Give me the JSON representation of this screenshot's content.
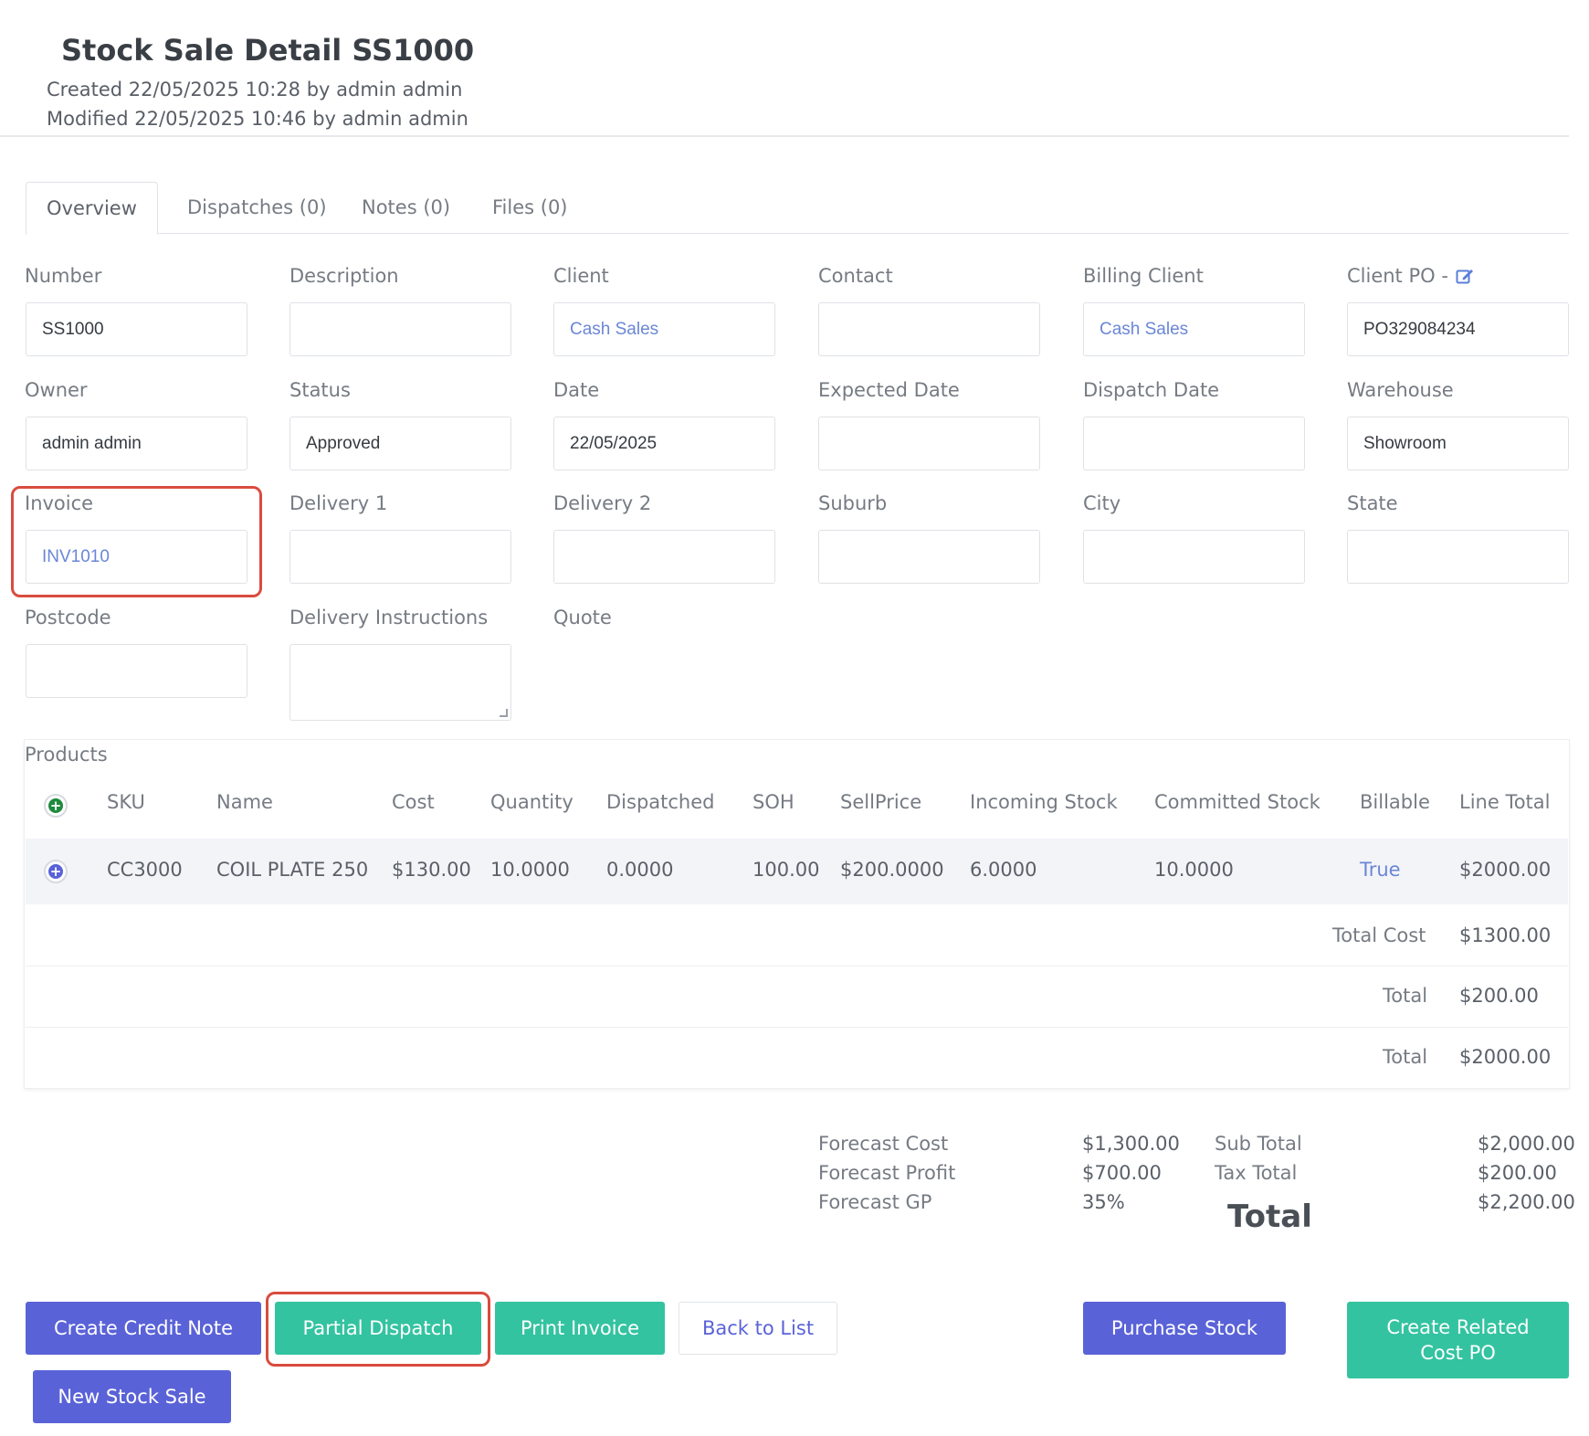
{
  "header": {
    "title": "Stock Sale Detail SS1000",
    "created": "Created 22/05/2025 10:28 by admin admin",
    "modified": "Modified 22/05/2025 10:46 by admin admin"
  },
  "tabs": [
    {
      "label": "Overview",
      "active": true
    },
    {
      "label": "Dispatches (0)",
      "active": false
    },
    {
      "label": "Notes (0)",
      "active": false
    },
    {
      "label": "Files (0)",
      "active": false
    }
  ],
  "fields": {
    "number": {
      "label": "Number",
      "value": "SS1000"
    },
    "description": {
      "label": "Description",
      "value": ""
    },
    "client": {
      "label": "Client",
      "value": "Cash Sales"
    },
    "contact": {
      "label": "Contact",
      "value": ""
    },
    "billing_client": {
      "label": "Billing Client",
      "value": "Cash Sales"
    },
    "client_po": {
      "label": "Client PO -",
      "value": "PO329084234"
    },
    "owner": {
      "label": "Owner",
      "value": "admin admin"
    },
    "status": {
      "label": "Status",
      "value": "Approved"
    },
    "date": {
      "label": "Date",
      "value": "22/05/2025"
    },
    "expected_date": {
      "label": "Expected Date",
      "value": ""
    },
    "dispatch_date": {
      "label": "Dispatch Date",
      "value": ""
    },
    "warehouse": {
      "label": "Warehouse",
      "value": "Showroom"
    },
    "invoice": {
      "label": "Invoice",
      "value": "INV1010"
    },
    "delivery1": {
      "label": "Delivery 1",
      "value": ""
    },
    "delivery2": {
      "label": "Delivery 2",
      "value": ""
    },
    "suburb": {
      "label": "Suburb",
      "value": ""
    },
    "city": {
      "label": "City",
      "value": ""
    },
    "state": {
      "label": "State",
      "value": ""
    },
    "postcode": {
      "label": "Postcode",
      "value": ""
    },
    "delivery_instructions": {
      "label": "Delivery Instructions",
      "value": ""
    },
    "quote": {
      "label": "Quote",
      "value": ""
    }
  },
  "products": {
    "label": "Products",
    "columns": [
      "SKU",
      "Name",
      "Cost",
      "Quantity",
      "Dispatched",
      "SOH",
      "SellPrice",
      "Incoming Stock",
      "Committed Stock",
      "Billable",
      "Line Total"
    ],
    "rows": [
      {
        "sku": "CC3000",
        "name": "COIL PLATE 250",
        "cost": "$130.00",
        "quantity": "10.0000",
        "dispatched": "0.0000",
        "soh": "100.00",
        "sellprice": "$200.0000",
        "incoming": "6.0000",
        "committed": "10.0000",
        "billable": "True",
        "line_total": "$2000.00"
      }
    ],
    "summary": [
      {
        "label": "Total Cost",
        "value": "$1300.00"
      },
      {
        "label": "Total",
        "value": "$200.00"
      },
      {
        "label": "Total",
        "value": "$2000.00"
      }
    ]
  },
  "forecast": {
    "cost_label": "Forecast Cost",
    "cost": "$1,300.00",
    "profit_label": "Forecast Profit",
    "profit": "$700.00",
    "gp_label": "Forecast GP",
    "gp": "35%"
  },
  "totals": {
    "subtotal_label": "Sub Total",
    "subtotal": "$2,000.00",
    "tax_label": "Tax Total",
    "tax": "$200.00",
    "total_label": "Total",
    "total": "$2,200.00"
  },
  "buttons": {
    "create_credit_note": "Create Credit Note",
    "partial_dispatch": "Partial Dispatch",
    "print_invoice": "Print Invoice",
    "back_to_list": "Back to List",
    "purchase_stock": "Purchase Stock",
    "create_related_line1": "Create Related",
    "create_related_line2": "Cost PO",
    "new_stock_sale": "New Stock Sale"
  },
  "colors": {
    "indigo": "#5a62d8",
    "teal": "#33c3a0",
    "link": "#6a86d6",
    "highlight": "#d94c3f",
    "add_green": "#1e8a3c"
  }
}
